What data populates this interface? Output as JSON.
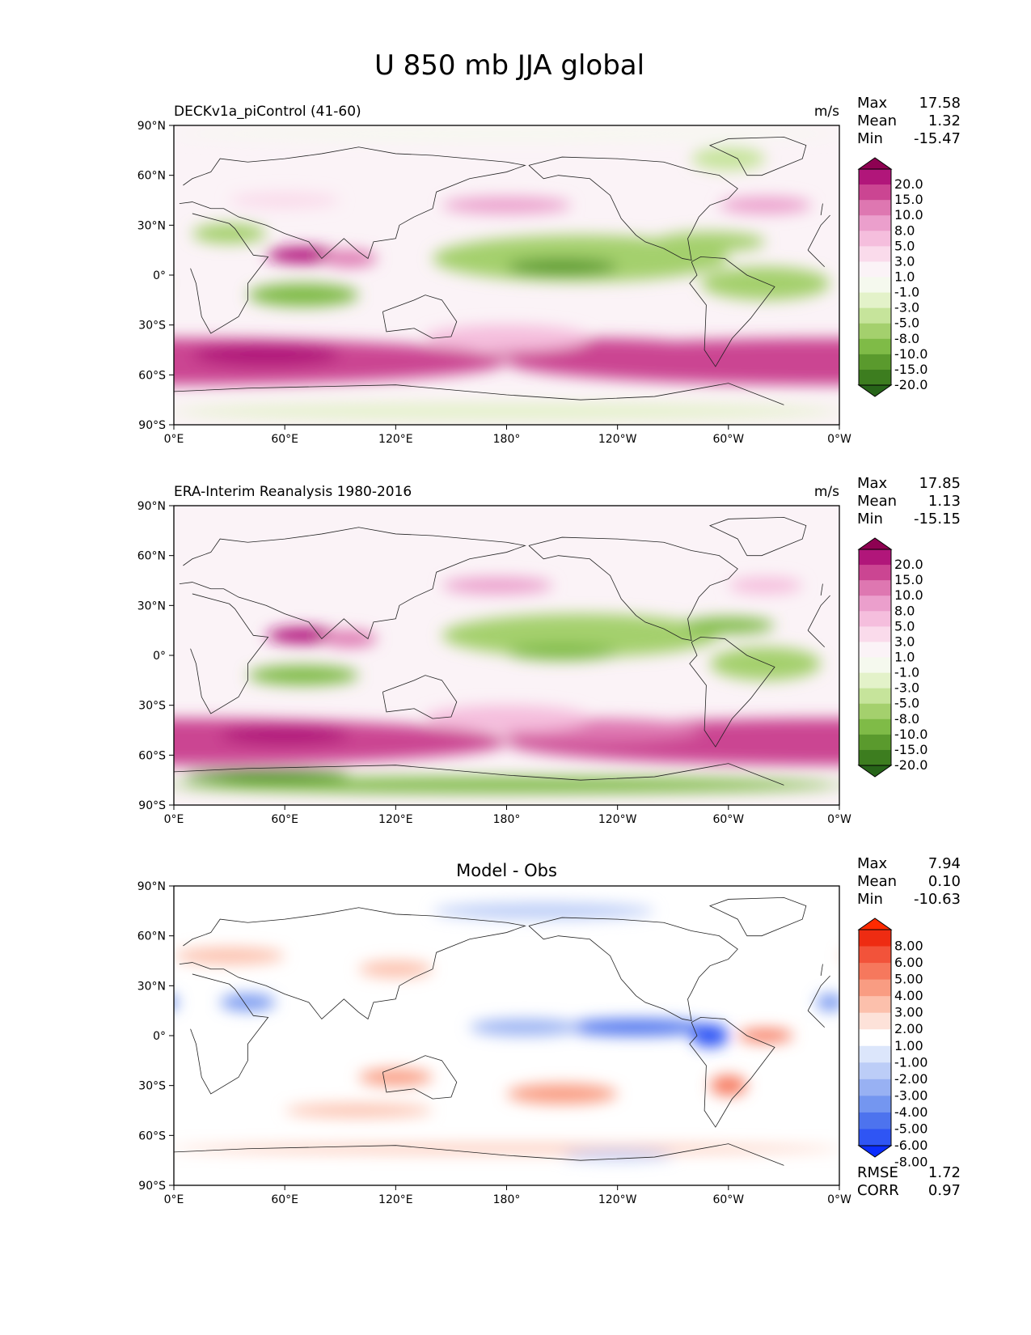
{
  "title": "U 850 mb JJA global",
  "colors": {
    "model_levels": [
      "#276419",
      "#3d7d1f",
      "#5a9a2d",
      "#7fbb47",
      "#a4d06d",
      "#c6e49b",
      "#e3f2c9",
      "#f5f9ee",
      "#fbf3f7",
      "#fadbeb",
      "#f5bedd",
      "#eb9fcc",
      "#de77b1",
      "#cb4592",
      "#b1167a",
      "#8e0152"
    ],
    "diff_levels": [
      "#0b2dff",
      "#2f55f4",
      "#4d73ee",
      "#7496f0",
      "#98b1f3",
      "#bccdf7",
      "#dce6fb",
      "#ffffff",
      "#fde2d9",
      "#fcc0ac",
      "#f99c82",
      "#f6785d",
      "#f2533a",
      "#ee2c12",
      "#ff2a00"
    ],
    "map_bg": "#ffffff"
  },
  "chart_data": [
    {
      "type": "heatmap",
      "panel": "model",
      "subtitle": "DECKv1a_piControl (41-60)",
      "units": "m/s",
      "stats": [
        {
          "label": "Max",
          "value": "17.58"
        },
        {
          "label": "Mean",
          "value": "1.32"
        },
        {
          "label": "Min",
          "value": "-15.47"
        }
      ],
      "colorbar_ticks": [
        "20.0",
        "15.0",
        "10.0",
        "8.0",
        "5.0",
        "3.0",
        "1.0",
        "-1.0",
        "-3.0",
        "-5.0",
        "-8.0",
        "-10.0",
        "-15.0",
        "-20.0"
      ],
      "xticks": [
        "0°E",
        "60°E",
        "120°E",
        "180°",
        "120°W",
        "60°W",
        "0°W"
      ],
      "yticks": [
        "90°N",
        "60°N",
        "30°N",
        "0°",
        "30°S",
        "60°S",
        "90°S"
      ],
      "xlim": [
        0,
        360
      ],
      "ylim": [
        -90,
        90
      ]
    },
    {
      "type": "heatmap",
      "panel": "obs",
      "subtitle": "ERA-Interim Reanalysis 1980-2016",
      "units": "m/s",
      "stats": [
        {
          "label": "Max",
          "value": "17.85"
        },
        {
          "label": "Mean",
          "value": "1.13"
        },
        {
          "label": "Min",
          "value": "-15.15"
        }
      ],
      "colorbar_ticks": [
        "20.0",
        "15.0",
        "10.0",
        "8.0",
        "5.0",
        "3.0",
        "1.0",
        "-1.0",
        "-3.0",
        "-5.0",
        "-8.0",
        "-10.0",
        "-15.0",
        "-20.0"
      ],
      "xticks": [
        "0°E",
        "60°E",
        "120°E",
        "180°",
        "120°W",
        "60°W",
        "0°W"
      ],
      "yticks": [
        "90°N",
        "60°N",
        "30°N",
        "0°",
        "30°S",
        "60°S",
        "90°S"
      ],
      "xlim": [
        0,
        360
      ],
      "ylim": [
        -90,
        90
      ]
    },
    {
      "type": "heatmap",
      "panel": "diff",
      "title": "Model - Obs",
      "stats": [
        {
          "label": "Max",
          "value": "7.94"
        },
        {
          "label": "Mean",
          "value": "0.10"
        },
        {
          "label": "Min",
          "value": "-10.63"
        }
      ],
      "colorbar_ticks": [
        "8.00",
        "6.00",
        "5.00",
        "4.00",
        "3.00",
        "2.00",
        "1.00",
        "-1.00",
        "-2.00",
        "-3.00",
        "-4.00",
        "-5.00",
        "-6.00",
        "-8.00"
      ],
      "extra_stats": [
        {
          "label": "RMSE",
          "value": "1.72"
        },
        {
          "label": "CORR",
          "value": "0.97"
        }
      ],
      "xticks": [
        "0°E",
        "60°E",
        "120°E",
        "180°",
        "120°W",
        "60°W",
        "0°W"
      ],
      "yticks": [
        "90°N",
        "60°N",
        "30°N",
        "0°",
        "30°S",
        "60°S",
        "90°S"
      ],
      "xlim": [
        0,
        360
      ],
      "ylim": [
        -90,
        90
      ]
    }
  ]
}
